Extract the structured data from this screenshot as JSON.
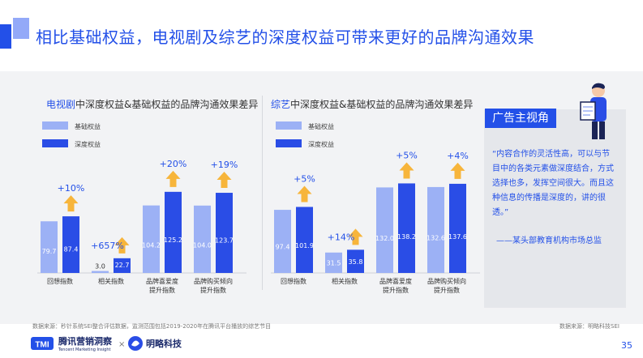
{
  "page": {
    "title": "相比基础权益，电视剧及综艺的深度权益可带来更好的品牌沟通效果",
    "page_number": "35"
  },
  "colors": {
    "base": "#9cb1f5",
    "deep": "#2a4de6",
    "arrow": "#f7b53b",
    "accent": "#2350e8"
  },
  "chart_data": [
    {
      "type": "bar",
      "title_highlight": "电视剧",
      "title_rest": "中深度权益&基础权益的品牌沟通效果差异",
      "categories": [
        "回想指数",
        "相关指数",
        "品牌喜爱度提升指数",
        "品牌购买倾向提升指数"
      ],
      "category_lines": [
        [
          "回想指数"
        ],
        [
          "相关指数"
        ],
        [
          "品牌喜爱度",
          "提升指数"
        ],
        [
          "品牌购买倾向",
          "提升指数"
        ]
      ],
      "series": [
        {
          "name": "基础权益",
          "values": [
            79.7,
            3.0,
            104.2,
            104.0
          ]
        },
        {
          "name": "深度权益",
          "values": [
            87.4,
            22.7,
            125.2,
            123.7
          ]
        }
      ],
      "uplift": [
        "+10%",
        "+657%",
        "+20%",
        "+19%"
      ],
      "ylim": [
        0,
        200
      ]
    },
    {
      "type": "bar",
      "title_highlight": "综艺",
      "title_rest": "中深度权益&基础权益的品牌沟通效果差异",
      "categories": [
        "回想指数",
        "相关指数",
        "品牌喜爱度提升指数",
        "品牌购买倾向提升指数"
      ],
      "category_lines": [
        [
          "回想指数"
        ],
        [
          "相关指数"
        ],
        [
          "品牌喜爱度",
          "提升指数"
        ],
        [
          "品牌购买倾向",
          "提升指数"
        ]
      ],
      "series": [
        {
          "name": "基础权益",
          "values": [
            97.4,
            31.5,
            132.0,
            132.6
          ]
        },
        {
          "name": "深度权益",
          "values": [
            101.9,
            35.8,
            138.2,
            137.6
          ]
        }
      ],
      "uplift": [
        "+5%",
        "+14%",
        "+5%",
        "+4%"
      ],
      "ylim": [
        0,
        200
      ]
    }
  ],
  "panel": {
    "tag": "广告主视角",
    "quote": "“内容合作的灵活性高，可以与节目中的各类元素做深度结合，方式选择也多，发挥空间很大。而且这种信息的传播是深度的，讲的很透。”",
    "source": "——某头部教育机构市场总监"
  },
  "footer": {
    "left_source": "数据来源：秒针系统SEI整合评估数据，监测范围包括2019-2020年在腾讯平台播放的综艺节目",
    "right_source": "数据来源：明略科技SEI",
    "brand_left": "腾讯营销洞察",
    "brand_left_sub": "Tencent Marketing Insight",
    "brand_right": "明略科技",
    "times": "×"
  }
}
